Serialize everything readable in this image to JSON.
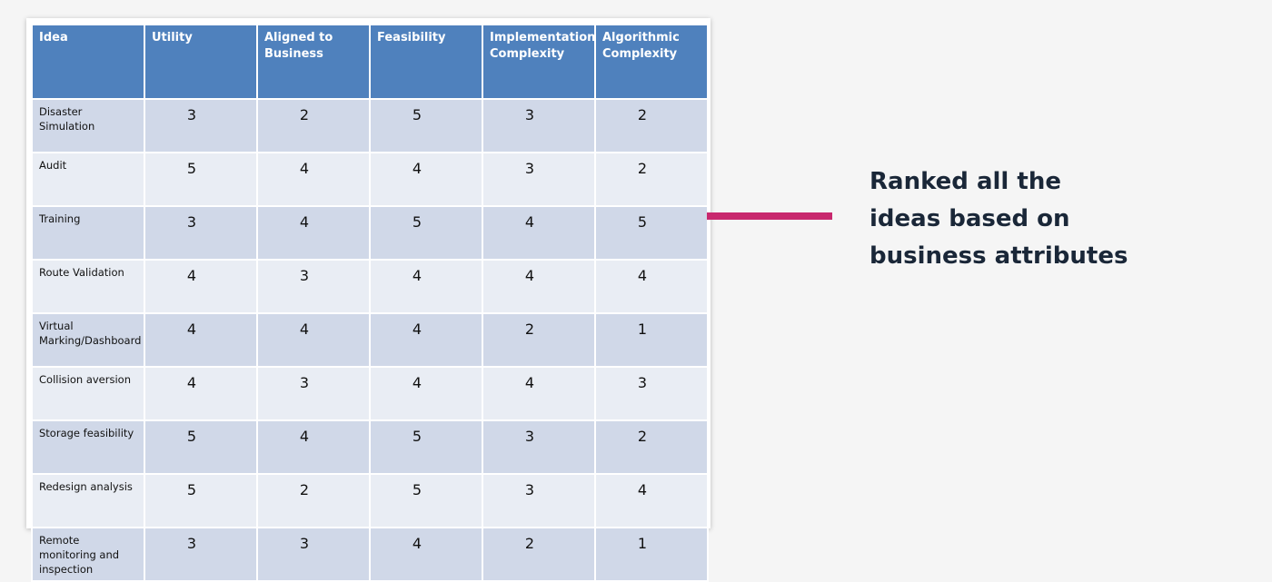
{
  "table": {
    "columns": [
      "Idea",
      "Utility",
      "Aligned to Business",
      "Feasibility",
      "Implementation Complexity",
      "Algorithmic Complexity"
    ],
    "rows": [
      [
        "Disaster Simulation",
        3,
        2,
        5,
        3,
        2
      ],
      [
        "Audit",
        5,
        4,
        4,
        3,
        2
      ],
      [
        "Training",
        3,
        4,
        5,
        4,
        5
      ],
      [
        "Route Validation",
        4,
        3,
        4,
        4,
        4
      ],
      [
        "Virtual Marking/Dashboard",
        4,
        4,
        4,
        2,
        1
      ],
      [
        "Collision aversion",
        4,
        3,
        4,
        4,
        3
      ],
      [
        "Storage feasibility",
        5,
        4,
        5,
        3,
        2
      ],
      [
        "Redesign analysis",
        5,
        2,
        5,
        3,
        4
      ],
      [
        "Remote monitoring and inspection",
        3,
        3,
        4,
        2,
        1
      ]
    ]
  },
  "caption": "Ranked all the ideas based on business attributes"
}
